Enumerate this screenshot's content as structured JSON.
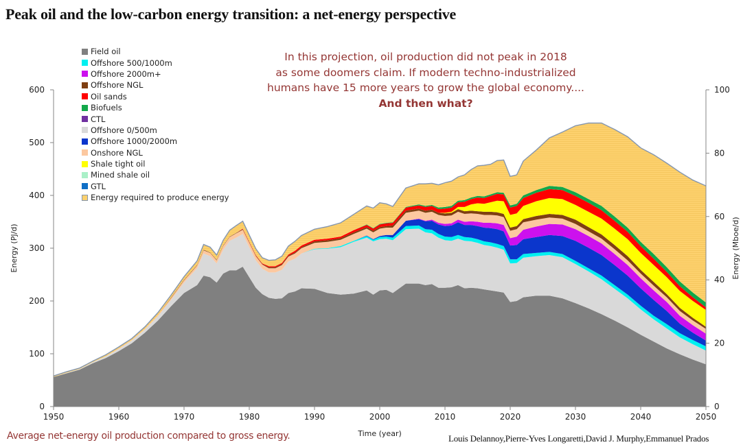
{
  "title": "Peak oil and the low-carbon energy transition: a net-energy perspective",
  "annotation": {
    "lines": [
      "In this projection, oil production did not peak in 2018",
      "as some doomers claim. If modern techno-industrialized",
      "humans have 15 more years to grow the global economy...."
    ],
    "emphasis": "And then what?",
    "color": "#943634"
  },
  "caption": "Average net-energy oil production compared to gross energy.",
  "credits": "Louis Delannoy,Pierre-Yves Longaretti,David J. Murphy,Emmanuel Prados",
  "chart_data": {
    "type": "area",
    "stacked": true,
    "title": "Peak oil and the low-carbon energy transition: a net-energy perspective",
    "xlabel": "Time (year)",
    "ylabel": "Energy  (PJ/d)",
    "ylabel_right": "Energy (Mboe/d)",
    "xlim": [
      1950,
      2050
    ],
    "ylim": [
      0,
      600
    ],
    "ylim_right": [
      0,
      100
    ],
    "x_ticks": [
      1950,
      1960,
      1970,
      1980,
      1990,
      2000,
      2010,
      2020,
      2030,
      2040,
      2050
    ],
    "y_ticks": [
      0,
      100,
      200,
      300,
      400,
      500,
      600
    ],
    "y_ticks_right": [
      0,
      20,
      40,
      60,
      80,
      100
    ],
    "grid": false,
    "legend_position": "top-left",
    "x": [
      1950,
      1952,
      1954,
      1956,
      1958,
      1960,
      1962,
      1964,
      1966,
      1968,
      1970,
      1972,
      1973,
      1974,
      1975,
      1976,
      1977,
      1978,
      1979,
      1980,
      1981,
      1982,
      1983,
      1984,
      1985,
      1986,
      1987,
      1988,
      1990,
      1992,
      1994,
      1996,
      1998,
      1999,
      2000,
      2001,
      2002,
      2004,
      2006,
      2007,
      2008,
      2009,
      2010,
      2011,
      2012,
      2013,
      2014,
      2015,
      2016,
      2017,
      2018,
      2019,
      2020,
      2021,
      2022,
      2024,
      2026,
      2028,
      2030,
      2032,
      2034,
      2036,
      2038,
      2040,
      2042,
      2044,
      2046,
      2048,
      2050
    ],
    "series": [
      {
        "name": "Field oil",
        "color": "#808080",
        "values": [
          56,
          63,
          70,
          82,
          92,
          105,
          120,
          140,
          163,
          190,
          215,
          230,
          248,
          245,
          235,
          252,
          258,
          258,
          265,
          245,
          225,
          213,
          206,
          204,
          205,
          215,
          218,
          224,
          223,
          215,
          212,
          214,
          220,
          212,
          220,
          221,
          215,
          233,
          233,
          230,
          232,
          225,
          225,
          226,
          230,
          224,
          225,
          224,
          222,
          220,
          218,
          216,
          198,
          200,
          207,
          210,
          210,
          205,
          196,
          186,
          175,
          163,
          150,
          136,
          123,
          110,
          99,
          89,
          80
        ]
      },
      {
        "name": "Offshore 0/500m",
        "color": "#d9d9d9",
        "values": [
          0,
          1,
          1,
          2,
          3,
          4,
          5,
          6,
          8,
          12,
          20,
          32,
          42,
          40,
          36,
          45,
          56,
          62,
          62,
          57,
          52,
          48,
          48,
          50,
          54,
          60,
          62,
          66,
          75,
          84,
          90,
          98,
          100,
          101,
          97,
          97,
          100,
          103,
          104,
          100,
          96,
          95,
          90,
          88,
          88,
          90,
          88,
          86,
          84,
          84,
          83,
          81,
          73,
          72,
          75,
          75,
          77,
          78,
          74,
          70,
          66,
          60,
          55,
          48,
          42,
          38,
          32,
          29,
          26
        ]
      },
      {
        "name": "Offshore 500/1000m",
        "color": "#00f0f0",
        "values": [
          0,
          0,
          0,
          0,
          0,
          0,
          0,
          0,
          0,
          0,
          0,
          0,
          0,
          0,
          0,
          0,
          0,
          0,
          0,
          0,
          0,
          0,
          0,
          0,
          0,
          0,
          0,
          0,
          1,
          1,
          2,
          2,
          3,
          3,
          4,
          4,
          5,
          6,
          6,
          6,
          7,
          7,
          7,
          7,
          7,
          7,
          7,
          7,
          7,
          7,
          7,
          7,
          8,
          7,
          7,
          6,
          6,
          6,
          6,
          6,
          7,
          7,
          7,
          7,
          7,
          8,
          8,
          8,
          8
        ]
      },
      {
        "name": "Offshore 1000/2000m",
        "color": "#0b36cc",
        "values": [
          0,
          0,
          0,
          0,
          0,
          0,
          0,
          0,
          0,
          0,
          0,
          0,
          0,
          0,
          0,
          0,
          0,
          0,
          0,
          0,
          0,
          0,
          0,
          0,
          0,
          0,
          0,
          0,
          0,
          0,
          0,
          0,
          1,
          1,
          2,
          3,
          5,
          10,
          12,
          15,
          17,
          18,
          20,
          22,
          24,
          23,
          24,
          25,
          26,
          27,
          28,
          28,
          26,
          27,
          28,
          30,
          32,
          34,
          38,
          39,
          39,
          38,
          36,
          33,
          30,
          25,
          18,
          14,
          11
        ]
      },
      {
        "name": "Offshore 2000m+",
        "color": "#cc11ee",
        "values": [
          0,
          0,
          0,
          0,
          0,
          0,
          0,
          0,
          0,
          0,
          0,
          0,
          0,
          0,
          0,
          0,
          0,
          0,
          0,
          0,
          0,
          0,
          0,
          0,
          0,
          0,
          0,
          0,
          0,
          0,
          0,
          0,
          0,
          0,
          0,
          0,
          0,
          0,
          1,
          1,
          2,
          3,
          4,
          4,
          5,
          6,
          7,
          8,
          9,
          10,
          11,
          12,
          14,
          16,
          18,
          20,
          21,
          22,
          22,
          22,
          22,
          21,
          20,
          19,
          18,
          17,
          15,
          14,
          13
        ]
      },
      {
        "name": "Onshore NGL",
        "color": "#fcc8a0",
        "values": [
          0,
          0,
          0,
          0,
          0,
          1,
          1,
          1,
          2,
          3,
          4,
          5,
          6,
          6,
          6,
          7,
          7,
          8,
          8,
          8,
          8,
          8,
          8,
          8,
          9,
          9,
          10,
          10,
          11,
          12,
          12,
          13,
          13,
          13,
          14,
          14,
          14,
          15,
          15,
          15,
          15,
          15,
          15,
          15,
          15,
          15,
          15,
          15,
          15,
          15,
          15,
          15,
          14,
          14,
          14,
          13,
          12,
          11,
          10,
          9,
          9,
          9,
          9,
          9,
          9,
          9,
          9,
          9,
          9
        ]
      },
      {
        "name": "Offshore NGL",
        "color": "#7f3f12",
        "values": [
          0,
          0,
          0,
          0,
          0,
          0,
          0,
          0,
          0,
          1,
          1,
          1,
          1,
          1,
          1,
          1,
          1,
          1,
          1,
          1,
          1,
          1,
          2,
          2,
          2,
          2,
          2,
          2,
          3,
          3,
          3,
          3,
          3,
          3,
          3,
          3,
          4,
          4,
          4,
          4,
          4,
          4,
          5,
          5,
          5,
          5,
          5,
          5,
          6,
          6,
          6,
          6,
          6,
          6,
          6,
          7,
          7,
          7,
          8,
          8,
          8,
          8,
          8,
          7,
          7,
          6,
          6,
          5,
          4
        ]
      },
      {
        "name": "Shale tight oil",
        "color": "#ffff00",
        "values": [
          0,
          0,
          0,
          0,
          0,
          0,
          0,
          0,
          0,
          0,
          0,
          0,
          0,
          0,
          0,
          0,
          0,
          0,
          0,
          0,
          0,
          0,
          0,
          0,
          0,
          0,
          0,
          0,
          0,
          0,
          0,
          0,
          0,
          0,
          0,
          0,
          0,
          0,
          0,
          0,
          0,
          0,
          1,
          2,
          4,
          8,
          12,
          15,
          15,
          18,
          22,
          24,
          24,
          24,
          25,
          28,
          30,
          30,
          28,
          29,
          30,
          31,
          32,
          32,
          32,
          32,
          32,
          32,
          32
        ]
      },
      {
        "name": "Oil sands",
        "color": "#ff0000",
        "values": [
          0,
          0,
          0,
          0,
          0,
          0,
          0,
          0,
          0,
          0,
          0,
          0,
          0,
          0,
          0,
          0,
          0,
          0,
          1,
          1,
          1,
          1,
          2,
          2,
          2,
          2,
          3,
          3,
          3,
          3,
          3,
          4,
          4,
          4,
          5,
          5,
          5,
          6,
          6,
          7,
          7,
          7,
          8,
          8,
          9,
          10,
          10,
          11,
          11,
          12,
          13,
          13,
          14,
          14,
          15,
          16,
          17,
          17,
          17,
          17,
          16,
          15,
          14,
          13,
          12,
          10,
          9,
          7,
          5
        ]
      },
      {
        "name": "Biofuels",
        "color": "#12a84a",
        "values": [
          0,
          0,
          0,
          0,
          0,
          0,
          0,
          0,
          0,
          0,
          0,
          0,
          0,
          0,
          0,
          0,
          0,
          0,
          0,
          0,
          0,
          0,
          0,
          0,
          0,
          0,
          0,
          0,
          0,
          0,
          0,
          0,
          1,
          1,
          1,
          1,
          1,
          1,
          2,
          2,
          2,
          3,
          3,
          3,
          3,
          3,
          3,
          3,
          3,
          3,
          3,
          3,
          4,
          4,
          5,
          5,
          6,
          6,
          7,
          7,
          8,
          8,
          8,
          8,
          9,
          9,
          9,
          9,
          9
        ]
      },
      {
        "name": "CTL",
        "color": "#7030a0",
        "values": [
          0,
          0,
          0,
          0,
          0,
          0,
          0,
          0,
          0,
          0,
          0,
          0,
          0,
          0,
          0,
          0,
          0,
          0,
          0,
          0,
          0,
          0,
          0,
          0,
          0,
          0,
          0,
          0,
          0,
          0,
          0,
          0,
          0,
          0,
          0,
          0,
          0,
          0,
          0,
          0,
          0,
          0,
          0,
          0,
          0,
          0,
          0,
          0,
          0,
          0,
          0,
          0,
          0,
          0,
          0,
          0,
          0,
          0,
          0,
          0,
          0,
          0,
          0,
          0,
          0,
          0,
          0,
          0,
          0
        ]
      },
      {
        "name": "Mined shale oil",
        "color": "#aaf0c8",
        "values": [
          0,
          0,
          0,
          0,
          0,
          0,
          0,
          0,
          0,
          0,
          0,
          0,
          0,
          0,
          0,
          0,
          0,
          0,
          0,
          0,
          0,
          0,
          0,
          0,
          0,
          0,
          0,
          0,
          0,
          0,
          0,
          0,
          0,
          0,
          0,
          0,
          0,
          0,
          0,
          0,
          0,
          0,
          0,
          0,
          0,
          0,
          0,
          0,
          0,
          0,
          0,
          0,
          0,
          0,
          0,
          0,
          0,
          0,
          0,
          0,
          0,
          0,
          0,
          0,
          0,
          0,
          0,
          0,
          0
        ]
      },
      {
        "name": "GTL",
        "color": "#0f6fc6",
        "values": [
          0,
          0,
          0,
          0,
          0,
          0,
          0,
          0,
          0,
          0,
          0,
          0,
          0,
          0,
          0,
          0,
          0,
          0,
          0,
          0,
          0,
          0,
          0,
          0,
          0,
          0,
          0,
          0,
          0,
          0,
          0,
          0,
          0,
          0,
          0,
          0,
          0,
          0,
          0,
          0,
          0,
          0,
          0,
          0,
          0,
          0,
          0,
          0,
          0,
          0,
          0,
          0,
          0,
          0,
          0,
          0,
          0,
          0,
          0,
          0,
          0,
          0,
          0,
          0,
          0,
          0,
          0,
          0,
          0
        ]
      },
      {
        "name": "Energy required to produce energy",
        "color": "#fdd16e",
        "edge_color": "#8496b0",
        "values": [
          2,
          2,
          2,
          2,
          3,
          3,
          3,
          4,
          5,
          5,
          6,
          8,
          10,
          10,
          9,
          10,
          12,
          14,
          14,
          13,
          12,
          11,
          11,
          12,
          13,
          16,
          18,
          19,
          20,
          23,
          26,
          30,
          35,
          38,
          40,
          36,
          30,
          36,
          39,
          42,
          41,
          43,
          46,
          47,
          45,
          48,
          53,
          57,
          59,
          57,
          60,
          62,
          55,
          55,
          65,
          76,
          91,
          104,
          126,
          144,
          157,
          165,
          172,
          178,
          188,
          197,
          207,
          213,
          221
        ]
      }
    ],
    "legend_order": [
      "Field oil",
      "Offshore 500/1000m",
      "Offshore 2000m+",
      "Offshore NGL",
      "Oil sands",
      "Biofuels",
      "CTL",
      "Offshore 0/500m",
      "Offshore 1000/2000m",
      "Onshore NGL",
      "Shale tight oil",
      "Mined shale oil",
      "GTL",
      "Energy required to produce energy"
    ]
  }
}
